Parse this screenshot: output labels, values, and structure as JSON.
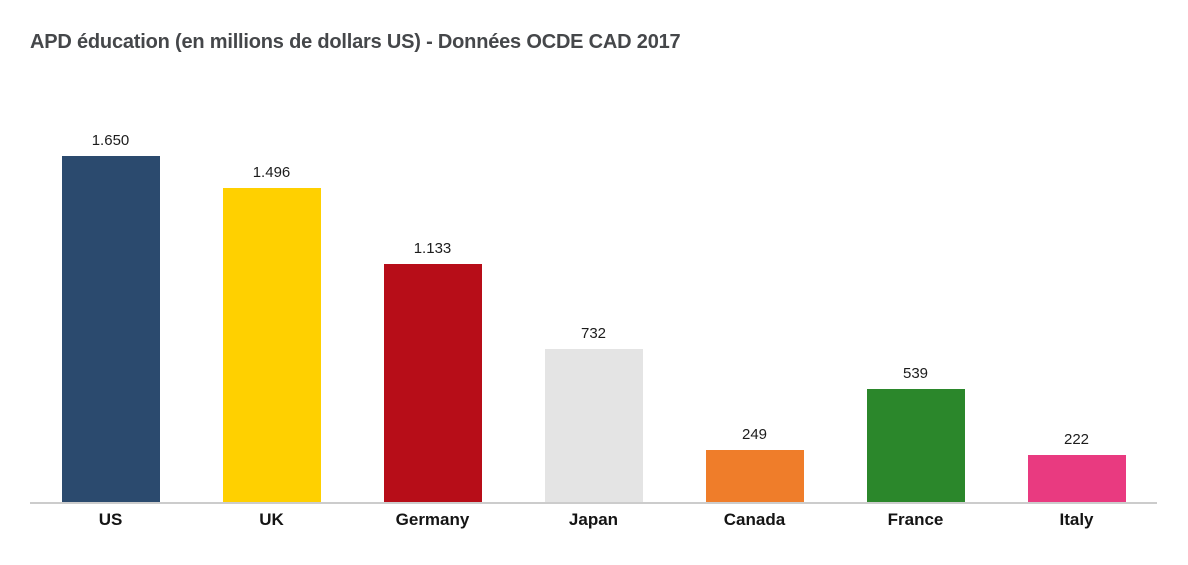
{
  "title": "APD éducation (en millions de dollars US) - Données OCDE CAD 2017",
  "chart_data": {
    "type": "bar",
    "title": "APD éducation (en millions de dollars US) - Données OCDE CAD 2017",
    "categories": [
      "US",
      "UK",
      "Germany",
      "Japan",
      "Canada",
      "France",
      "Italy"
    ],
    "values": [
      1650,
      1496,
      1133,
      732,
      249,
      539,
      222
    ],
    "value_labels": [
      "1.650",
      "1.496",
      "1.133",
      "732",
      "249",
      "539",
      "222"
    ],
    "bar_colors": [
      "#2b4a6e",
      "#ffd000",
      "#b70d18",
      "#e4e4e4",
      "#ef7d2a",
      "#2b872b",
      "#e93a80"
    ],
    "xlabel": "",
    "ylabel": "",
    "ylim": [
      0,
      1650
    ],
    "grid": false,
    "legend": "none",
    "data_labels": "above-bars"
  },
  "layout_colors": {
    "background": "#ffffff",
    "axis_line": "#cccccc",
    "title_text": "#45474a",
    "value_text": "#1c1c1c",
    "category_text": "#141414"
  }
}
